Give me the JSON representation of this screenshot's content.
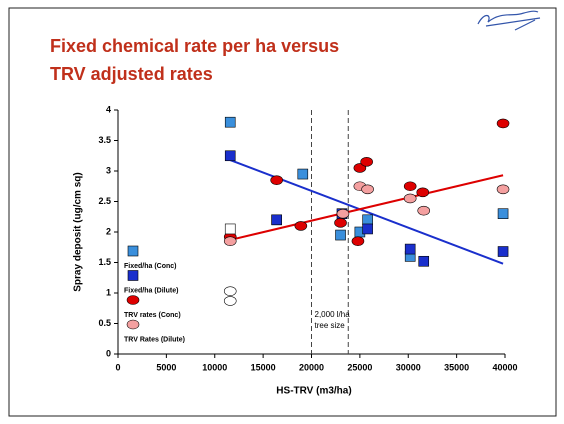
{
  "chart_data": {
    "type": "scatter",
    "title": [
      "Fixed chemical rate per ha versus",
      "TRV adjusted rates"
    ],
    "x_label": "HS-TRV (m3/ha)",
    "y_label": "Spray deposit (ug/cm sq)",
    "xlim": [
      0,
      40000
    ],
    "xticks": [
      0,
      5000,
      10000,
      15000,
      20000,
      25000,
      30000,
      35000,
      40000
    ],
    "ylim": [
      0,
      4
    ],
    "yticks": [
      0,
      0.5,
      1,
      1.5,
      2,
      2.5,
      3,
      3.5,
      4
    ],
    "grid": false,
    "legend": "left",
    "series": [
      {
        "name": "Fixed/ha (Conc)",
        "color": "#3a8fdc",
        "marker": "square",
        "x": [
          11600,
          19100,
          16400,
          23000,
          25000,
          25800,
          30200,
          39800
        ],
        "values": [
          3.8,
          2.95,
          2.2,
          1.95,
          2.0,
          2.2,
          1.6,
          2.3
        ]
      },
      {
        "name": "Fixed/ha (Dilute)",
        "color": "#1a2fcc",
        "marker": "square",
        "x": [
          11600,
          16400,
          23150,
          25800,
          30200,
          31600,
          39800
        ],
        "values": [
          3.25,
          2.2,
          2.3,
          2.05,
          1.72,
          1.52,
          1.68
        ]
      },
      {
        "name": "TRV rates (Conc)",
        "color": "#dd0000",
        "marker": "circle",
        "x": [
          11600,
          16400,
          18900,
          23000,
          24800,
          25000,
          25700,
          30200,
          31500,
          39800
        ],
        "values": [
          1.92,
          2.85,
          2.1,
          2.15,
          1.85,
          3.05,
          3.15,
          2.75,
          2.65,
          3.78
        ]
      },
      {
        "name": "TRV Rates (Dilute)",
        "color": "#f4a0a0",
        "marker": "circle",
        "x": [
          11600,
          23250,
          25000,
          25800,
          30200,
          31600,
          39800
        ],
        "values": [
          1.85,
          2.3,
          2.75,
          2.7,
          2.55,
          2.35,
          2.7
        ]
      },
      {
        "color": "#ffffff",
        "marker": "square",
        "x": [
          11600
        ],
        "values": [
          2.05
        ]
      },
      {
        "color": "#ffffff",
        "marker": "circle",
        "x": [
          11600,
          11600
        ],
        "values": [
          1.03,
          0.87
        ]
      }
    ],
    "trendlines": [
      {
        "color": "#1a2fcc",
        "x": [
          11600,
          39800
        ],
        "values": [
          3.18,
          1.48
        ]
      },
      {
        "color": "#dd0000",
        "x": [
          11600,
          39800
        ],
        "values": [
          1.87,
          2.93
        ]
      }
    ],
    "reference_lines": [
      20000,
      23800
    ],
    "annotation": [
      "2,000 l/ha",
      "tree size"
    ]
  }
}
